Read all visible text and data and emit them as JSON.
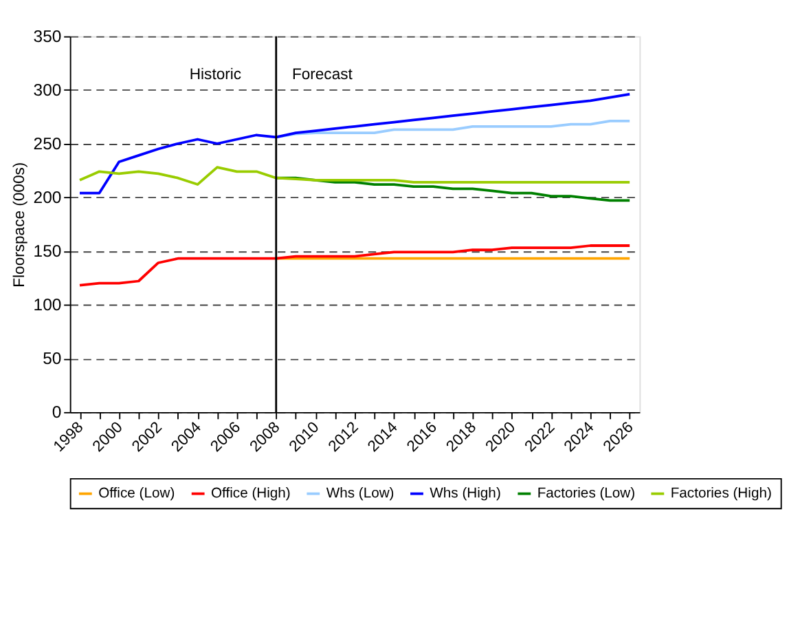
{
  "chart_data": {
    "type": "line",
    "ylabel": "Floorspace (000s)",
    "x": [
      1998,
      1999,
      2000,
      2001,
      2002,
      2003,
      2004,
      2005,
      2006,
      2007,
      2008,
      2009,
      2010,
      2011,
      2012,
      2013,
      2014,
      2015,
      2016,
      2017,
      2018,
      2019,
      2020,
      2021,
      2022,
      2023,
      2024,
      2025,
      2026
    ],
    "series": [
      {
        "name": "Office (Low)",
        "color": "#ffa500",
        "values": [
          null,
          null,
          null,
          null,
          null,
          null,
          null,
          null,
          null,
          null,
          143,
          143,
          143,
          143,
          143,
          143,
          143,
          143,
          143,
          143,
          143,
          143,
          143,
          143,
          143,
          143,
          143,
          143,
          143
        ]
      },
      {
        "name": "Office (High)",
        "color": "#ff0000",
        "values": [
          118,
          120,
          120,
          122,
          139,
          143,
          143,
          143,
          143,
          143,
          143,
          145,
          145,
          145,
          145,
          147,
          149,
          149,
          149,
          149,
          151,
          151,
          153,
          153,
          153,
          153,
          155,
          155,
          155
        ]
      },
      {
        "name": "Whs (Low)",
        "color": "#99ccff",
        "values": [
          null,
          null,
          null,
          null,
          null,
          null,
          null,
          null,
          null,
          null,
          256,
          259,
          260,
          260,
          260,
          260,
          263,
          263,
          263,
          263,
          266,
          266,
          266,
          266,
          266,
          268,
          268,
          271,
          271
        ]
      },
      {
        "name": "Whs (High)",
        "color": "#0000ff",
        "values": [
          204,
          204,
          233,
          239,
          245,
          250,
          254,
          250,
          254,
          258,
          256,
          260,
          262,
          264,
          266,
          268,
          270,
          272,
          274,
          276,
          278,
          280,
          282,
          284,
          286,
          288,
          290,
          293,
          296
        ]
      },
      {
        "name": "Factories (Low)",
        "color": "#008000",
        "values": [
          null,
          null,
          null,
          null,
          null,
          null,
          null,
          null,
          null,
          null,
          218,
          218,
          216,
          214,
          214,
          212,
          212,
          210,
          210,
          208,
          208,
          206,
          204,
          204,
          201,
          201,
          199,
          197,
          197
        ]
      },
      {
        "name": "Factories (High)",
        "color": "#99cc00",
        "values": [
          216,
          224,
          222,
          224,
          222,
          218,
          212,
          228,
          224,
          224,
          218,
          217,
          216,
          216,
          216,
          216,
          216,
          214,
          214,
          214,
          214,
          214,
          214,
          214,
          214,
          214,
          214,
          214,
          214
        ]
      }
    ],
    "xlim": [
      1997.5,
      2026.5
    ],
    "xticks": [
      1998,
      {
        "value": 1999,
        "label": null
      },
      2000,
      {
        "value": 2001,
        "label": null
      },
      2002,
      {
        "value": 2003,
        "label": null
      },
      2004,
      {
        "value": 2005,
        "label": null
      },
      2006,
      {
        "value": 2007,
        "label": null
      },
      2008,
      {
        "value": 2009,
        "label": null
      },
      2010,
      {
        "value": 2011,
        "label": null
      },
      2012,
      {
        "value": 2013,
        "label": null
      },
      2014,
      {
        "value": 2015,
        "label": null
      },
      2016,
      {
        "value": 2017,
        "label": null
      },
      2018,
      {
        "value": 2019,
        "label": null
      },
      2020,
      {
        "value": 2021,
        "label": null
      },
      2022,
      {
        "value": 2023,
        "label": null
      },
      2024,
      {
        "value": 2025,
        "label": null
      },
      2026
    ],
    "ylim": [
      0,
      350
    ],
    "yticks": [
      0,
      50,
      100,
      150,
      200,
      250,
      300,
      350
    ],
    "grid": "y",
    "legend": "bottom",
    "marker": "none",
    "line_style": "solid",
    "ref_lines": [
      {
        "axis": "x",
        "value": 2008,
        "color": "#000000"
      }
    ],
    "annotations": [
      "Historic",
      "Forecast"
    ]
  }
}
